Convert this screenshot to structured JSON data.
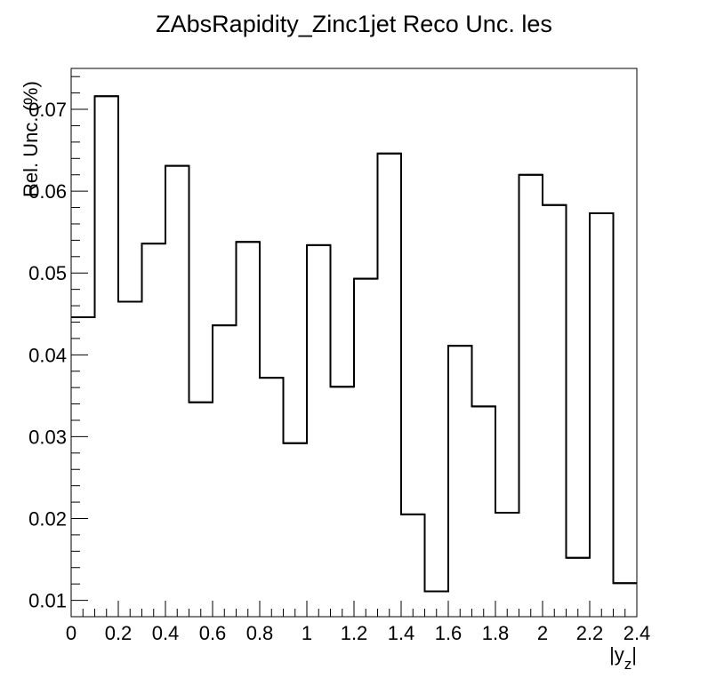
{
  "chart_data": {
    "type": "step",
    "title": "ZAbsRapidity_Zinc1jet Reco Unc. les",
    "xlabel": "|y",
    "xlabel_sub": "z",
    "xlabel_end": "|",
    "ylabel": "Rel. Unc. (%)",
    "xlim": [
      0,
      2.4
    ],
    "ylim": [
      0.008,
      0.075
    ],
    "grid": false,
    "x_ticks": [
      0,
      0.2,
      0.4,
      0.6,
      0.8,
      1,
      1.2,
      1.4,
      1.6,
      1.8,
      2,
      2.2,
      2.4
    ],
    "x_tick_labels": [
      "0",
      "0.2",
      "0.4",
      "0.6",
      "0.8",
      "1",
      "1.2",
      "1.4",
      "1.6",
      "1.8",
      "2",
      "2.2",
      "2.4"
    ],
    "y_ticks": [
      0.01,
      0.02,
      0.03,
      0.04,
      0.05,
      0.06,
      0.07
    ],
    "y_tick_labels": [
      "0.01",
      "0.02",
      "0.03",
      "0.04",
      "0.05",
      "0.06",
      "0.07"
    ],
    "bin_edges": [
      0,
      0.1,
      0.2,
      0.3,
      0.4,
      0.5,
      0.6,
      0.7,
      0.8,
      0.9,
      1.0,
      1.1,
      1.2,
      1.3,
      1.4,
      1.5,
      1.6,
      1.7,
      1.8,
      1.9,
      2.0,
      2.1,
      2.2,
      2.3,
      2.4
    ],
    "values": [
      0.0446,
      0.0716,
      0.0465,
      0.0536,
      0.0631,
      0.0342,
      0.0436,
      0.0538,
      0.0372,
      0.0292,
      0.0534,
      0.0361,
      0.0493,
      0.0646,
      0.0205,
      0.0111,
      0.0411,
      0.0337,
      0.0207,
      0.062,
      0.0583,
      0.0152,
      0.0573,
      0.0121
    ]
  }
}
